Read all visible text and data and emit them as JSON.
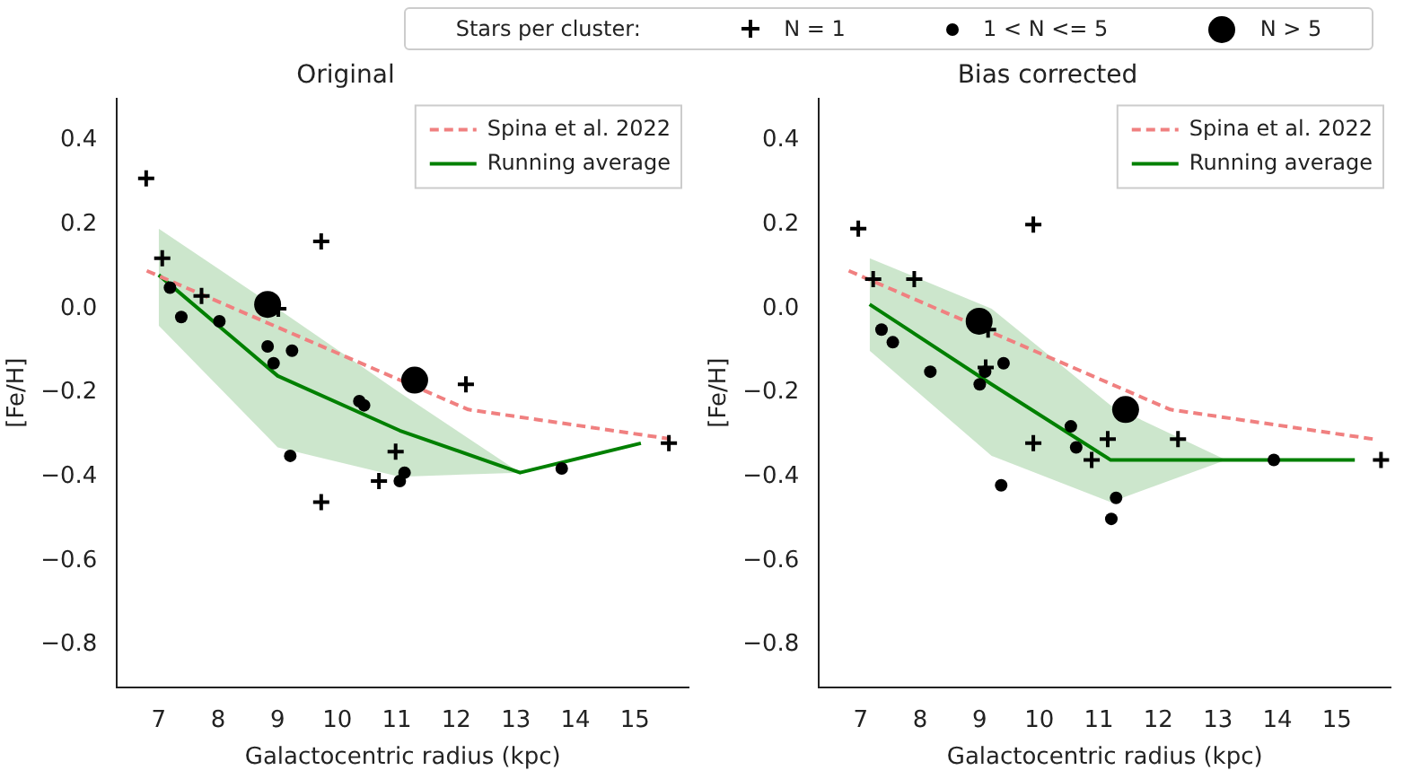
{
  "chart_data": [
    {
      "type": "scatter",
      "title": "Original",
      "xlabel": "Galactocentric radius (kpc)",
      "ylabel": "[Fe/H]",
      "legend_title": "Stars per cluster:",
      "xlim": [
        6.3,
        15.9
      ],
      "xticks": [
        7,
        8,
        9,
        10,
        11,
        12,
        13,
        14,
        15
      ],
      "ylim": [
        -0.9,
        0.5
      ],
      "yticks": [
        {
          "value": -0.8,
          "label": "−0.8"
        },
        {
          "value": -0.6,
          "label": "−0.6"
        },
        {
          "value": -0.4,
          "label": "−0.4"
        },
        {
          "value": -0.2,
          "label": "−0.2"
        },
        {
          "value": 0,
          "label": "0.0"
        },
        {
          "value": 0.2,
          "label": "0.2"
        },
        {
          "value": 0.4,
          "label": "0.4"
        }
      ],
      "grid": false,
      "legend": "top right",
      "series": [
        {
          "name": "Spina et al. 2022",
          "type": "line",
          "color": "#f08080",
          "line_style": "dashed",
          "marker": "none",
          "x": [
            6.8,
            12.2,
            15.6
          ],
          "values": [
            0.09,
            -0.24,
            -0.31
          ]
        },
        {
          "name": "Running average",
          "type": "line",
          "color": "#008000",
          "line_style": "solid",
          "marker": "none",
          "x": [
            7,
            9,
            11.05,
            13.07,
            15.1
          ],
          "values": [
            0.08,
            -0.16,
            -0.29,
            -0.39,
            -0.32
          ],
          "lower": [
            -0.04,
            -0.33,
            -0.4,
            -0.39,
            null
          ],
          "upper": [
            0.19,
            0.0,
            -0.2,
            -0.39,
            null
          ]
        },
        {
          "name": "N = 1",
          "type": "scatter",
          "color": "#000000",
          "marker": "cross",
          "x": [
            6.79,
            7.06,
            7.72,
            9.73,
            12.16,
            15.57,
            10.98,
            10.7,
            9.73,
            9.01
          ],
          "values": [
            0.31,
            0.12,
            0.03,
            0.16,
            -0.18,
            -0.32,
            -0.34,
            -0.41,
            -0.46,
            0.0
          ]
        },
        {
          "name": "1 < N <= 5",
          "type": "scatter",
          "color": "#000000",
          "marker": "circle",
          "x": [
            7.19,
            7.38,
            8.02,
            8.83,
            8.93,
            9.24,
            10.37,
            10.45,
            9.21,
            11.13,
            11.05,
            13.77
          ],
          "values": [
            0.05,
            -0.02,
            -0.03,
            -0.09,
            -0.13,
            -0.1,
            -0.22,
            -0.23,
            -0.35,
            -0.39,
            -0.41,
            -0.38
          ]
        },
        {
          "name": "N > 5",
          "type": "scatter",
          "color": "#000000",
          "marker": "circle",
          "x": [
            8.83,
            11.3
          ],
          "values": [
            0.01,
            -0.17
          ]
        }
      ]
    },
    {
      "type": "scatter",
      "title": "Bias corrected",
      "xlabel": "Galactocentric radius (kpc)",
      "ylabel": "[Fe/H]",
      "xlim": [
        6.3,
        15.9
      ],
      "xticks": [
        7,
        8,
        9,
        10,
        11,
        12,
        13,
        14,
        15
      ],
      "ylim": [
        -0.9,
        0.5
      ],
      "yticks": [
        {
          "value": -0.8,
          "label": "−0.8"
        },
        {
          "value": -0.6,
          "label": "−0.6"
        },
        {
          "value": -0.4,
          "label": "−0.4"
        },
        {
          "value": -0.2,
          "label": "−0.2"
        },
        {
          "value": 0,
          "label": "0.0"
        },
        {
          "value": 0.2,
          "label": "0.2"
        },
        {
          "value": 0.4,
          "label": "0.4"
        }
      ],
      "grid": false,
      "legend": "top right",
      "series": [
        {
          "name": "Spina et al. 2022",
          "type": "line",
          "color": "#f08080",
          "line_style": "dashed",
          "marker": "none",
          "x": [
            6.8,
            12.2,
            15.6
          ],
          "values": [
            0.09,
            -0.24,
            -0.31
          ]
        },
        {
          "name": "Running average",
          "type": "line",
          "color": "#008000",
          "line_style": "solid",
          "marker": "none",
          "x": [
            7.15,
            9.2,
            11.2,
            13.14,
            15.3
          ],
          "values": [
            0.01,
            -0.18,
            -0.36,
            -0.36,
            -0.36
          ],
          "lower": [
            -0.1,
            -0.35,
            -0.46,
            -0.36,
            null
          ],
          "upper": [
            0.12,
            0.0,
            -0.23,
            -0.36,
            null
          ]
        },
        {
          "type": "scatter",
          "color": "#000000",
          "marker": "cross",
          "x": [
            6.96,
            7.21,
            7.9,
            9.9,
            9.14,
            9.1,
            9.9,
            11.15,
            10.88,
            12.33,
            15.74
          ],
          "values": [
            0.19,
            0.07,
            0.07,
            0.2,
            -0.05,
            -0.14,
            -0.32,
            -0.31,
            -0.36,
            -0.31,
            -0.36
          ]
        },
        {
          "type": "scatter",
          "color": "#000000",
          "marker": "circle",
          "x": [
            7.35,
            7.54,
            8.17,
            9.0,
            9.09,
            9.4,
            10.53,
            10.62,
            9.36,
            11.29,
            11.21,
            13.94
          ],
          "values": [
            -0.05,
            -0.08,
            -0.15,
            -0.18,
            -0.15,
            -0.13,
            -0.28,
            -0.33,
            -0.42,
            -0.45,
            -0.5,
            -0.36
          ]
        },
        {
          "type": "scatter",
          "color": "#000000",
          "marker": "circle",
          "x": [
            8.99,
            11.45
          ],
          "values": [
            -0.03,
            -0.24
          ]
        }
      ]
    }
  ]
}
